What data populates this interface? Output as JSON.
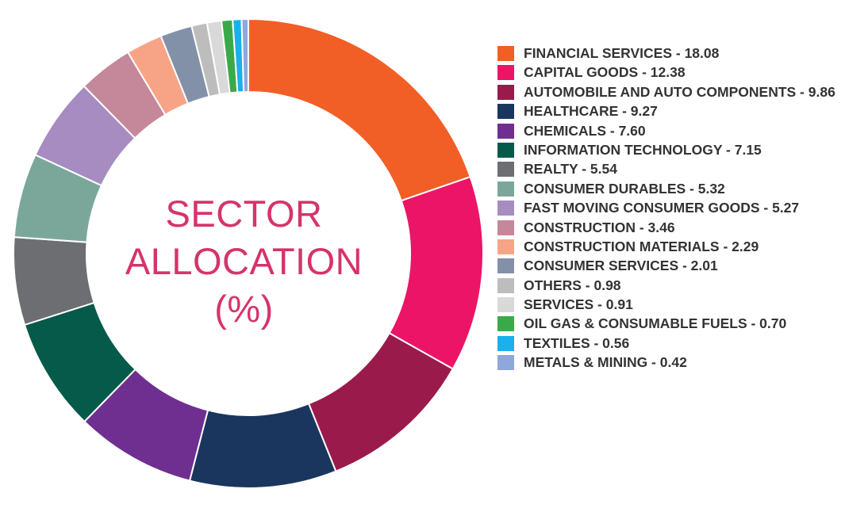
{
  "chart_data": {
    "type": "pie",
    "title": "SECTOR ALLOCATION (%)",
    "title_lines": [
      "SECTOR",
      "ALLOCATION",
      "(%)"
    ],
    "slices": [
      {
        "label": "FINANCIAL SERVICES - 18.08",
        "name": "FINANCIAL SERVICES",
        "value": 18.08,
        "color": "#f15f26"
      },
      {
        "label": "CAPITAL GOODS - 12.38",
        "name": "CAPITAL GOODS",
        "value": 12.38,
        "color": "#ec1466"
      },
      {
        "label": "AUTOMOBILE AND AUTO COMPONENTS - 9.86",
        "name": "AUTOMOBILE AND AUTO COMPONENTS",
        "value": 9.86,
        "color": "#9b1a4c"
      },
      {
        "label": "HEALTHCARE - 9.27",
        "name": "HEALTHCARE",
        "value": 9.27,
        "color": "#1b365e"
      },
      {
        "label": "CHEMICALS - 7.60",
        "name": "CHEMICALS",
        "value": 7.6,
        "color": "#6f2f91"
      },
      {
        "label": "INFORMATION TECHNOLOGY - 7.15",
        "name": "INFORMATION TECHNOLOGY",
        "value": 7.15,
        "color": "#055a4a"
      },
      {
        "label": "REALTY - 5.54",
        "name": "REALTY",
        "value": 5.54,
        "color": "#6d6e71"
      },
      {
        "label": "CONSUMER DURABLES - 5.32",
        "name": "CONSUMER DURABLES",
        "value": 5.32,
        "color": "#7ba79a"
      },
      {
        "label": "FAST MOVING CONSUMER GOODS - 5.27",
        "name": "FAST MOVING CONSUMER GOODS",
        "value": 5.27,
        "color": "#a68cc1"
      },
      {
        "label": "CONSTRUCTION - 3.46",
        "name": "CONSTRUCTION",
        "value": 3.46,
        "color": "#c5879a"
      },
      {
        "label": "CONSTRUCTION MATERIALS - 2.29",
        "name": "CONSTRUCTION MATERIALS",
        "value": 2.29,
        "color": "#f7a486"
      },
      {
        "label": "CONSUMER SERVICES - 2.01",
        "name": "CONSUMER SERVICES",
        "value": 2.01,
        "color": "#8391a8"
      },
      {
        "label": "OTHERS - 0.98",
        "name": "OTHERS",
        "value": 0.98,
        "color": "#bdbdbd"
      },
      {
        "label": "SERVICES - 0.91",
        "name": "SERVICES",
        "value": 0.91,
        "color": "#d9d9d9"
      },
      {
        "label": "OIL GAS & CONSUMABLE FUELS - 0.70",
        "name": "OIL GAS & CONSUMABLE FUELS",
        "value": 0.7,
        "color": "#3aaa48"
      },
      {
        "label": "TEXTILES - 0.56",
        "name": "TEXTILES",
        "value": 0.56,
        "color": "#1ab0ed"
      },
      {
        "label": "METALS & MINING - 0.42",
        "name": "METALS & MINING",
        "value": 0.42,
        "color": "#90a7dc"
      }
    ],
    "legend_position": "right"
  }
}
